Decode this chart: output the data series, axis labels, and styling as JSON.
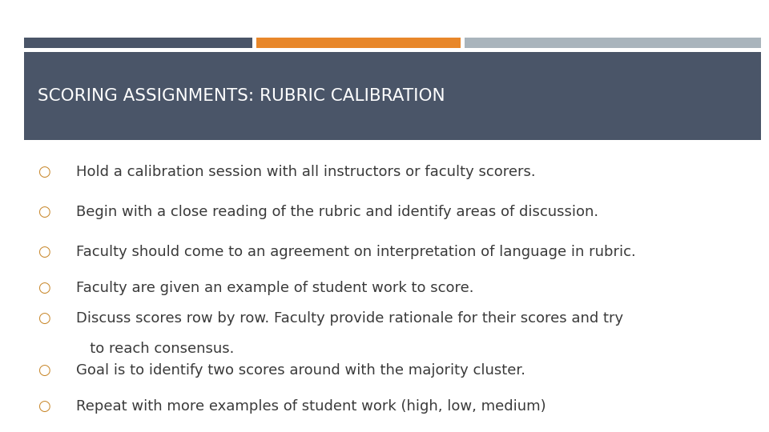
{
  "title": "SCORING ASSIGNMENTS: RUBRIC CALIBRATION",
  "title_bg_color": "#4a5568",
  "title_text_color": "#ffffff",
  "bg_color": "#ffffff",
  "bar_colors": [
    "#4a5568",
    "#e8872a",
    "#a9b4bc"
  ],
  "bullet_color": "#c8872a",
  "bullet_char": "○",
  "text_color": "#3a3a3a",
  "font_family": "DejaVu Sans",
  "bullets": [
    [
      "Hold a calibration session with all instructors or faculty scorers."
    ],
    [
      "Begin with a close reading of the rubric and identify areas of discussion."
    ],
    [
      "Faculty should come to an agreement on interpretation of language in rubric."
    ],
    [
      "Faculty are given an example of student work to score."
    ],
    [
      "Discuss scores row by row. Faculty provide rationale for their scores and try",
      "   to reach consensus."
    ],
    [
      "Goal is to identify two scores around with the majority cluster."
    ],
    [
      "Repeat with more examples of student work (high, low, medium)"
    ]
  ]
}
